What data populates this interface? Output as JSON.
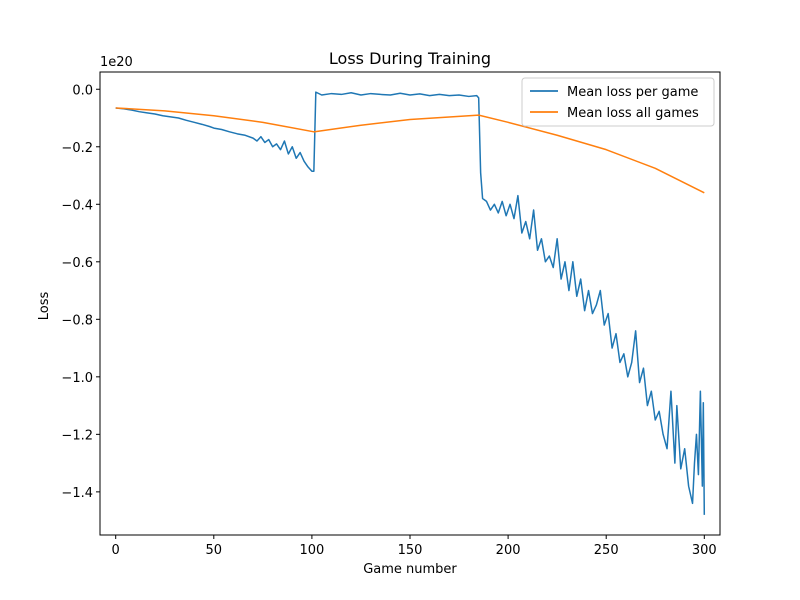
{
  "chart_data": {
    "type": "line",
    "title": "Loss During Training",
    "xlabel": "Game number",
    "ylabel": "Loss",
    "y_offset_text": "1e20",
    "y_scale_factor": 1e+20,
    "xlim": [
      -8,
      308
    ],
    "ylim": [
      -1.55,
      0.06
    ],
    "x_ticks": [
      0,
      50,
      100,
      150,
      200,
      250,
      300
    ],
    "x_tick_labels": [
      "0",
      "50",
      "100",
      "150",
      "200",
      "250",
      "300"
    ],
    "y_ticks": [
      0.0,
      -0.2,
      -0.4,
      -0.6,
      -0.8,
      -1.0,
      -1.2,
      -1.4
    ],
    "y_tick_labels": [
      "0.0",
      "−0.2",
      "−0.4",
      "−0.6",
      "−0.8",
      "−1.0",
      "−1.2",
      "−1.4"
    ],
    "grid": false,
    "legend_position": "top-right",
    "series": [
      {
        "name": "Mean loss per game",
        "color": "#1f77b4",
        "points": [
          [
            0,
            -0.065
          ],
          [
            4,
            -0.068
          ],
          [
            8,
            -0.072
          ],
          [
            12,
            -0.078
          ],
          [
            16,
            -0.082
          ],
          [
            20,
            -0.086
          ],
          [
            24,
            -0.092
          ],
          [
            28,
            -0.096
          ],
          [
            32,
            -0.1
          ],
          [
            36,
            -0.108
          ],
          [
            40,
            -0.115
          ],
          [
            44,
            -0.122
          ],
          [
            48,
            -0.13
          ],
          [
            50,
            -0.135
          ],
          [
            54,
            -0.14
          ],
          [
            58,
            -0.148
          ],
          [
            62,
            -0.155
          ],
          [
            66,
            -0.16
          ],
          [
            70,
            -0.17
          ],
          [
            72,
            -0.18
          ],
          [
            74,
            -0.165
          ],
          [
            76,
            -0.185
          ],
          [
            78,
            -0.175
          ],
          [
            80,
            -0.2
          ],
          [
            82,
            -0.19
          ],
          [
            84,
            -0.21
          ],
          [
            86,
            -0.18
          ],
          [
            88,
            -0.225
          ],
          [
            90,
            -0.2
          ],
          [
            92,
            -0.24
          ],
          [
            94,
            -0.22
          ],
          [
            96,
            -0.25
          ],
          [
            98,
            -0.27
          ],
          [
            100,
            -0.285
          ],
          [
            101,
            -0.285
          ],
          [
            102,
            -0.01
          ],
          [
            105,
            -0.02
          ],
          [
            110,
            -0.015
          ],
          [
            115,
            -0.018
          ],
          [
            120,
            -0.012
          ],
          [
            125,
            -0.02
          ],
          [
            130,
            -0.015
          ],
          [
            135,
            -0.018
          ],
          [
            140,
            -0.02
          ],
          [
            145,
            -0.014
          ],
          [
            150,
            -0.02
          ],
          [
            155,
            -0.016
          ],
          [
            160,
            -0.022
          ],
          [
            165,
            -0.018
          ],
          [
            170,
            -0.022
          ],
          [
            175,
            -0.02
          ],
          [
            180,
            -0.025
          ],
          [
            184,
            -0.022
          ],
          [
            185,
            -0.03
          ],
          [
            186,
            -0.29
          ],
          [
            187,
            -0.38
          ],
          [
            189,
            -0.39
          ],
          [
            191,
            -0.42
          ],
          [
            193,
            -0.4
          ],
          [
            195,
            -0.43
          ],
          [
            197,
            -0.39
          ],
          [
            199,
            -0.44
          ],
          [
            201,
            -0.4
          ],
          [
            203,
            -0.45
          ],
          [
            205,
            -0.37
          ],
          [
            207,
            -0.5
          ],
          [
            209,
            -0.46
          ],
          [
            211,
            -0.52
          ],
          [
            213,
            -0.42
          ],
          [
            215,
            -0.56
          ],
          [
            217,
            -0.52
          ],
          [
            219,
            -0.6
          ],
          [
            221,
            -0.58
          ],
          [
            223,
            -0.62
          ],
          [
            225,
            -0.52
          ],
          [
            227,
            -0.66
          ],
          [
            229,
            -0.6
          ],
          [
            231,
            -0.7
          ],
          [
            233,
            -0.6
          ],
          [
            235,
            -0.72
          ],
          [
            237,
            -0.66
          ],
          [
            239,
            -0.77
          ],
          [
            241,
            -0.7
          ],
          [
            243,
            -0.78
          ],
          [
            245,
            -0.75
          ],
          [
            247,
            -0.7
          ],
          [
            249,
            -0.82
          ],
          [
            251,
            -0.78
          ],
          [
            253,
            -0.9
          ],
          [
            255,
            -0.85
          ],
          [
            257,
            -0.95
          ],
          [
            259,
            -0.92
          ],
          [
            261,
            -1.0
          ],
          [
            263,
            -0.95
          ],
          [
            265,
            -0.84
          ],
          [
            267,
            -1.02
          ],
          [
            269,
            -0.97
          ],
          [
            271,
            -1.1
          ],
          [
            273,
            -1.05
          ],
          [
            275,
            -1.15
          ],
          [
            277,
            -1.12
          ],
          [
            279,
            -1.2
          ],
          [
            281,
            -1.25
          ],
          [
            283,
            -1.05
          ],
          [
            285,
            -1.3
          ],
          [
            286,
            -1.1
          ],
          [
            288,
            -1.32
          ],
          [
            290,
            -1.25
          ],
          [
            292,
            -1.38
          ],
          [
            294,
            -1.44
          ],
          [
            295,
            -1.3
          ],
          [
            296,
            -1.2
          ],
          [
            297,
            -1.34
          ],
          [
            298,
            -1.05
          ],
          [
            299,
            -1.38
          ],
          [
            299.5,
            -1.09
          ],
          [
            300,
            -1.48
          ]
        ]
      },
      {
        "name": "Mean loss all games",
        "color": "#ff7f0e",
        "points": [
          [
            0,
            -0.065
          ],
          [
            25,
            -0.075
          ],
          [
            50,
            -0.092
          ],
          [
            75,
            -0.115
          ],
          [
            101,
            -0.148
          ],
          [
            125,
            -0.125
          ],
          [
            150,
            -0.105
          ],
          [
            185,
            -0.09
          ],
          [
            200,
            -0.115
          ],
          [
            225,
            -0.16
          ],
          [
            250,
            -0.21
          ],
          [
            275,
            -0.275
          ],
          [
            300,
            -0.36
          ]
        ]
      }
    ]
  }
}
